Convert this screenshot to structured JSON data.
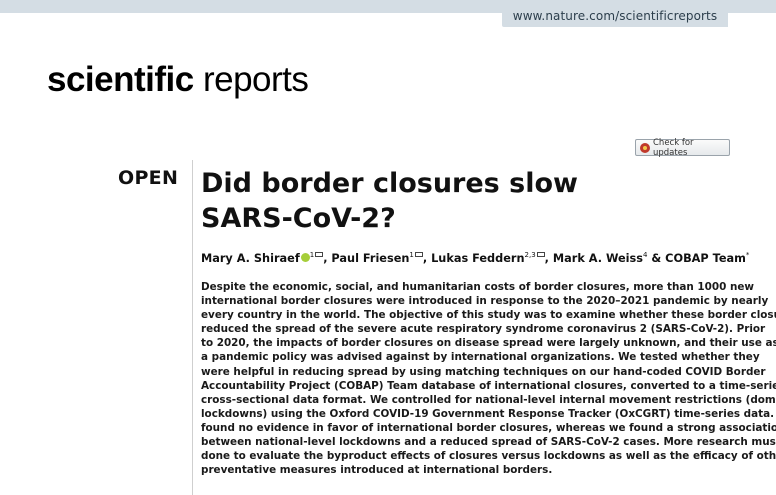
{
  "header": {
    "url": "www.nature.com/scientificreports",
    "journal_bold": "scientific",
    "journal_light": "reports",
    "check_updates": "Check for updates"
  },
  "article": {
    "open_label": "OPEN",
    "title_lines": [
      "Did border closures slow",
      "SARS-CoV-2?"
    ],
    "authors": {
      "a1": "Mary A. Shiraef",
      "a1_sup": "1",
      "a2": ", Paul Friesen",
      "a2_sup": "1",
      "a3": ", Lukas Feddern",
      "a3_sup": "2,3",
      "a4": ", Mark A. Weiss",
      "a4_sup": "4",
      "a5": " & COBAP Team",
      "a5_sup": "*"
    },
    "abstract_lines": [
      "Despite the economic, social, and humanitarian costs of border closures, more than 1000 new",
      "international border closures were introduced in response to the 2020–2021 pandemic by nearly",
      "every country in the world. The objective of this study was to examine whether these border closures",
      "reduced the spread of the severe acute respiratory syndrome coronavirus 2 (SARS-CoV-2). Prior",
      "to 2020, the impacts of border closures on disease spread were largely unknown, and their use as",
      "a pandemic policy was advised against by international organizations. We tested whether they",
      "were helpful in reducing spread by using matching techniques on our hand-coded COVID Border",
      "Accountability Project (COBAP) Team database of international closures, converted to a time-series",
      "cross-sectional data format. We controlled for national-level internal movement restrictions (domestic",
      "lockdowns) using the Oxford COVID-19 Government Response Tracker (OxCGRT) time-series data. We",
      "found no evidence in favor of international border closures, whereas we found a strong association",
      "between national-level lockdowns and a reduced spread of SARS-CoV-2 cases. More research must be",
      "done to evaluate the byproduct effects of closures versus lockdowns as well as the efficacy of other",
      "preventative measures introduced at international borders."
    ]
  }
}
